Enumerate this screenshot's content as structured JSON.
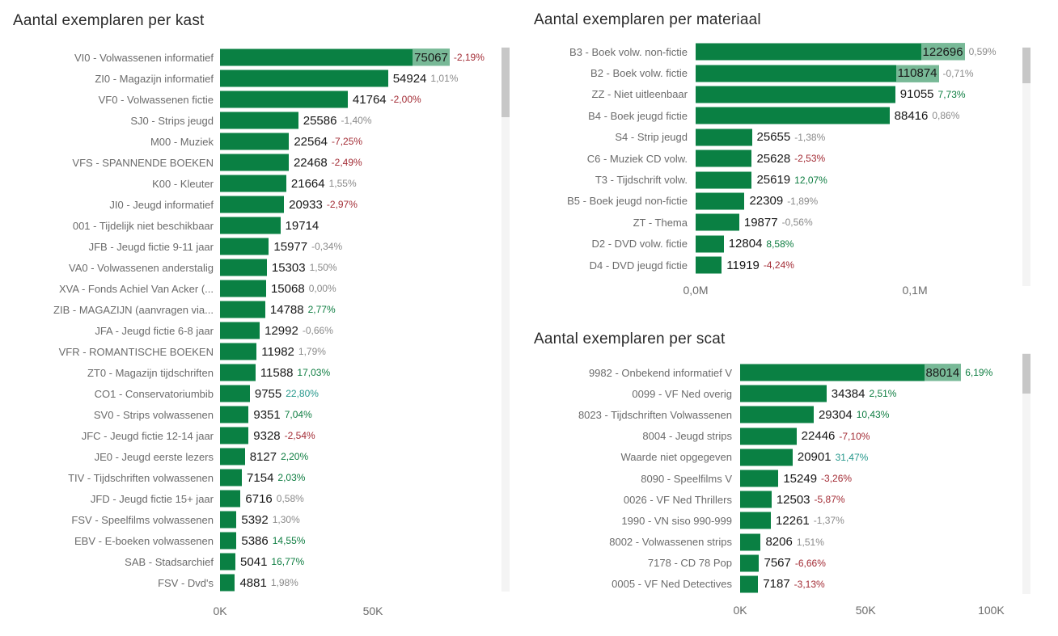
{
  "bar_color": "#0A8043",
  "percent_colors": {
    "red": "#A32C35",
    "green": "#0E7D41",
    "teal": "#26988C",
    "gray": "#8A8A8A"
  },
  "charts": [
    {
      "title": "Aantal exemplaren per kast",
      "axis_max": 91500,
      "ticks": [
        {
          "label": "0K",
          "value": 0
        },
        {
          "label": "50K",
          "value": 50000
        }
      ],
      "rows": [
        {
          "label": "VI0 - Volwassenen informatief",
          "value": "75067",
          "pct": "-2,19%",
          "pct_color": "red",
          "inside": true
        },
        {
          "label": "ZI0 - Magazijn informatief",
          "value": "54924",
          "pct": "1,01%",
          "pct_color": "gray"
        },
        {
          "label": "VF0 - Volwassenen fictie",
          "value": "41764",
          "pct": "-2,00%",
          "pct_color": "red"
        },
        {
          "label": "SJ0 - Strips jeugd",
          "value": "25586",
          "pct": "-1,40%",
          "pct_color": "gray"
        },
        {
          "label": "M00 - Muziek",
          "value": "22564",
          "pct": "-7,25%",
          "pct_color": "red"
        },
        {
          "label": "VFS - SPANNENDE BOEKEN",
          "value": "22468",
          "pct": "-2,49%",
          "pct_color": "red"
        },
        {
          "label": "K00 - Kleuter",
          "value": "21664",
          "pct": "1,55%",
          "pct_color": "gray"
        },
        {
          "label": "JI0 - Jeugd informatief",
          "value": "20933",
          "pct": "-2,97%",
          "pct_color": "red"
        },
        {
          "label": "001 - Tijdelijk niet beschikbaar",
          "value": "19714",
          "pct": "",
          "pct_color": "gray"
        },
        {
          "label": "JFB - Jeugd fictie 9-11 jaar",
          "value": "15977",
          "pct": "-0,34%",
          "pct_color": "gray"
        },
        {
          "label": "VA0 - Volwassenen anderstalig",
          "value": "15303",
          "pct": "1,50%",
          "pct_color": "gray"
        },
        {
          "label": "XVA - Fonds Achiel Van Acker (...",
          "value": "15068",
          "pct": "0,00%",
          "pct_color": "gray"
        },
        {
          "label": "ZIB - MAGAZIJN (aanvragen via...",
          "value": "14788",
          "pct": "2,77%",
          "pct_color": "green"
        },
        {
          "label": "JFA - Jeugd fictie 6-8 jaar",
          "value": "12992",
          "pct": "-0,66%",
          "pct_color": "gray"
        },
        {
          "label": "VFR - ROMANTISCHE BOEKEN",
          "value": "11982",
          "pct": "1,79%",
          "pct_color": "gray"
        },
        {
          "label": "ZT0 - Magazijn tijdschriften",
          "value": "11588",
          "pct": "17,03%",
          "pct_color": "green"
        },
        {
          "label": "CO1 - Conservatoriumbib",
          "value": "9755",
          "pct": "22,80%",
          "pct_color": "teal"
        },
        {
          "label": "SV0 - Strips volwassenen",
          "value": "9351",
          "pct": "7,04%",
          "pct_color": "green"
        },
        {
          "label": "JFC - Jeugd fictie 12-14 jaar",
          "value": "9328",
          "pct": "-2,54%",
          "pct_color": "red"
        },
        {
          "label": "JE0 - Jeugd eerste lezers",
          "value": "8127",
          "pct": "2,20%",
          "pct_color": "green"
        },
        {
          "label": "TIV - Tijdschriften volwassenen",
          "value": "7154",
          "pct": "2,03%",
          "pct_color": "green"
        },
        {
          "label": "JFD - Jeugd fictie 15+ jaar",
          "value": "6716",
          "pct": "0,58%",
          "pct_color": "gray"
        },
        {
          "label": "FSV - Speelfilms volwassenen",
          "value": "5392",
          "pct": "1,30%",
          "pct_color": "gray"
        },
        {
          "label": "EBV - E-boeken volwassenen",
          "value": "5386",
          "pct": "14,55%",
          "pct_color": "green"
        },
        {
          "label": "SAB - Stadsarchief",
          "value": "5041",
          "pct": "16,77%",
          "pct_color": "green"
        },
        {
          "label": "FSV - Dvd's",
          "value": "4881",
          "pct": "1,98%",
          "pct_color": "gray"
        }
      ]
    },
    {
      "title": "Aantal exemplaren per materiaal",
      "axis_max": 152000,
      "ticks": [
        {
          "label": "0,0M",
          "value": 0
        },
        {
          "label": "0,1M",
          "value": 100000
        }
      ],
      "rows": [
        {
          "label": "B3 - Boek volw. non-fictie",
          "value": "122696",
          "pct": "0,59%",
          "pct_color": "gray",
          "inside": true
        },
        {
          "label": "B2 - Boek volw. fictie",
          "value": "110874",
          "pct": "-0,71%",
          "pct_color": "gray",
          "inside": true
        },
        {
          "label": "ZZ - Niet uitleenbaar",
          "value": "91055",
          "pct": "7,73%",
          "pct_color": "green"
        },
        {
          "label": "B4 - Boek jeugd fictie",
          "value": "88416",
          "pct": "0,86%",
          "pct_color": "gray"
        },
        {
          "label": "S4 - Strip jeugd",
          "value": "25655",
          "pct": "-1,38%",
          "pct_color": "gray"
        },
        {
          "label": "C6 - Muziek CD volw.",
          "value": "25628",
          "pct": "-2,53%",
          "pct_color": "red"
        },
        {
          "label": "T3 - Tijdschrift volw.",
          "value": "25619",
          "pct": "12,07%",
          "pct_color": "green"
        },
        {
          "label": "B5 - Boek jeugd non-fictie",
          "value": "22309",
          "pct": "-1,89%",
          "pct_color": "gray"
        },
        {
          "label": "ZT - Thema",
          "value": "19877",
          "pct": "-0,56%",
          "pct_color": "gray"
        },
        {
          "label": "D2 - DVD volw. fictie",
          "value": "12804",
          "pct": "8,58%",
          "pct_color": "green"
        },
        {
          "label": "D4 - DVD jeugd fictie",
          "value": "11919",
          "pct": "-4,24%",
          "pct_color": "red"
        }
      ]
    },
    {
      "title": "Aantal exemplaren per scat",
      "axis_max": 115000,
      "ticks": [
        {
          "label": "0K",
          "value": 0
        },
        {
          "label": "50K",
          "value": 50000
        },
        {
          "label": "100K",
          "value": 100000
        }
      ],
      "rows": [
        {
          "label": "9982 - Onbekend informatief V",
          "value": "88014",
          "pct": "6,19%",
          "pct_color": "green",
          "inside": true
        },
        {
          "label": "0099 - VF Ned overig",
          "value": "34384",
          "pct": "2,51%",
          "pct_color": "green"
        },
        {
          "label": "8023 - Tijdschriften Volwassenen",
          "value": "29304",
          "pct": "10,43%",
          "pct_color": "green"
        },
        {
          "label": "8004 - Jeugd strips",
          "value": "22446",
          "pct": "-7,10%",
          "pct_color": "red"
        },
        {
          "label": "Waarde niet opgegeven",
          "value": "20901",
          "pct": "31,47%",
          "pct_color": "teal"
        },
        {
          "label": "8090 - Speelfilms V",
          "value": "15249",
          "pct": "-3,26%",
          "pct_color": "red"
        },
        {
          "label": "0026 - VF Ned Thrillers",
          "value": "12503",
          "pct": "-5,87%",
          "pct_color": "red"
        },
        {
          "label": "1990 - VN siso 990-999",
          "value": "12261",
          "pct": "-1,37%",
          "pct_color": "gray"
        },
        {
          "label": "8002 - Volwassenen strips",
          "value": "8206",
          "pct": "1,51%",
          "pct_color": "gray"
        },
        {
          "label": "7178 - CD 78 Pop",
          "value": "7567",
          "pct": "-6,66%",
          "pct_color": "red"
        },
        {
          "label": "0005 - VF Ned Detectives",
          "value": "7187",
          "pct": "-3,13%",
          "pct_color": "red"
        }
      ]
    }
  ],
  "chart_data": [
    {
      "type": "bar",
      "orientation": "horizontal",
      "title": "Aantal exemplaren per kast",
      "xlabel": "",
      "ylabel": "",
      "xlim": [
        0,
        91500
      ],
      "tick_labels": [
        "0K",
        "50K"
      ],
      "categories": [
        "VI0 - Volwassenen informatief",
        "ZI0 - Magazijn informatief",
        "VF0 - Volwassenen fictie",
        "SJ0 - Strips jeugd",
        "M00 - Muziek",
        "VFS - SPANNENDE BOEKEN",
        "K00 - Kleuter",
        "JI0 - Jeugd informatief",
        "001 - Tijdelijk niet beschikbaar",
        "JFB - Jeugd fictie 9-11 jaar",
        "VA0 - Volwassenen anderstalig",
        "XVA - Fonds Achiel Van Acker (...",
        "ZIB - MAGAZIJN (aanvragen via...",
        "JFA - Jeugd fictie 6-8 jaar",
        "VFR - ROMANTISCHE BOEKEN",
        "ZT0 - Magazijn tijdschriften",
        "CO1 - Conservatoriumbib",
        "SV0 - Strips volwassenen",
        "JFC - Jeugd fictie 12-14 jaar",
        "JE0 - Jeugd eerste lezers",
        "TIV - Tijdschriften volwassenen",
        "JFD - Jeugd fictie 15+ jaar",
        "FSV - Speelfilms volwassenen",
        "EBV - E-boeken volwassenen",
        "SAB - Stadsarchief",
        "FSV - Dvd's"
      ],
      "values": [
        75067,
        54924,
        41764,
        25586,
        22564,
        22468,
        21664,
        20933,
        19714,
        15977,
        15303,
        15068,
        14788,
        12992,
        11982,
        11588,
        9755,
        9351,
        9328,
        8127,
        7154,
        6716,
        5392,
        5386,
        5041,
        4881
      ],
      "pct_change": [
        "-2,19%",
        "1,01%",
        "-2,00%",
        "-1,40%",
        "-7,25%",
        "-2,49%",
        "1,55%",
        "-2,97%",
        "",
        "-0,34%",
        "1,50%",
        "0,00%",
        "2,77%",
        "-0,66%",
        "1,79%",
        "17,03%",
        "22,80%",
        "7,04%",
        "-2,54%",
        "2,20%",
        "2,03%",
        "0,58%",
        "1,30%",
        "14,55%",
        "16,77%",
        "1,98%"
      ]
    },
    {
      "type": "bar",
      "orientation": "horizontal",
      "title": "Aantal exemplaren per materiaal",
      "xlabel": "",
      "ylabel": "",
      "xlim": [
        0,
        152000
      ],
      "tick_labels": [
        "0,0M",
        "0,1M"
      ],
      "categories": [
        "B3 - Boek volw. non-fictie",
        "B2 - Boek volw. fictie",
        "ZZ - Niet uitleenbaar",
        "B4 - Boek jeugd fictie",
        "S4 - Strip jeugd",
        "C6 - Muziek CD volw.",
        "T3 - Tijdschrift volw.",
        "B5 - Boek jeugd non-fictie",
        "ZT - Thema",
        "D2 - DVD volw. fictie",
        "D4 - DVD jeugd fictie"
      ],
      "values": [
        122696,
        110874,
        91055,
        88416,
        25655,
        25628,
        25619,
        22309,
        19877,
        12804,
        11919
      ],
      "pct_change": [
        "0,59%",
        "-0,71%",
        "7,73%",
        "0,86%",
        "-1,38%",
        "-2,53%",
        "12,07%",
        "-1,89%",
        "-0,56%",
        "8,58%",
        "-4,24%"
      ]
    },
    {
      "type": "bar",
      "orientation": "horizontal",
      "title": "Aantal exemplaren per scat",
      "xlabel": "",
      "ylabel": "",
      "xlim": [
        0,
        115000
      ],
      "tick_labels": [
        "0K",
        "50K",
        "100K"
      ],
      "categories": [
        "9982 - Onbekend informatief V",
        "0099 - VF Ned overig",
        "8023 - Tijdschriften Volwassenen",
        "8004 - Jeugd strips",
        "Waarde niet opgegeven",
        "8090 - Speelfilms V",
        "0026 - VF Ned Thrillers",
        "1990 - VN siso 990-999",
        "8002 - Volwassenen strips",
        "7178 - CD 78 Pop",
        "0005 - VF Ned Detectives"
      ],
      "values": [
        88014,
        34384,
        29304,
        22446,
        20901,
        15249,
        12503,
        12261,
        8206,
        7567,
        7187
      ],
      "pct_change": [
        "6,19%",
        "2,51%",
        "10,43%",
        "-7,10%",
        "31,47%",
        "-3,26%",
        "-5,87%",
        "-1,37%",
        "1,51%",
        "-6,66%",
        "-3,13%"
      ]
    }
  ]
}
